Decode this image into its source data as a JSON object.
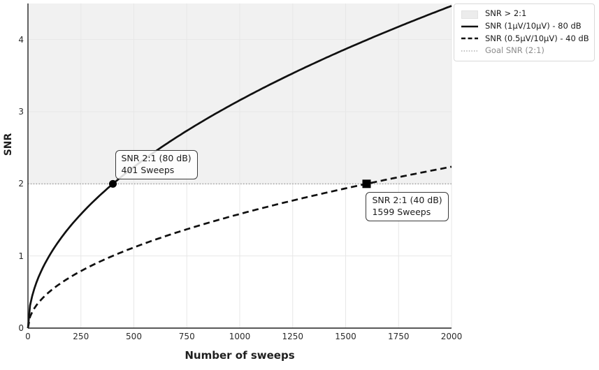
{
  "chart_data": {
    "type": "line",
    "title": "",
    "xlabel": "Number of sweeps",
    "ylabel": "SNR",
    "xlim": [
      0,
      2000
    ],
    "ylim": [
      0,
      4.5
    ],
    "x_ticks": [
      0,
      250,
      500,
      750,
      1000,
      1250,
      1500,
      1750,
      2000
    ],
    "y_ticks": [
      0,
      1,
      2,
      3,
      4
    ],
    "grid": true,
    "grid_color": "#e7e7e7",
    "legend_position": "top-right-outside",
    "shaded_region": {
      "label": "SNR > 2:1",
      "y_from": 2,
      "y_to": 4.5,
      "color": "#f1f1f1"
    },
    "goal_line": {
      "label": "Goal SNR (2:1)",
      "y": 2,
      "style": "dotted",
      "color": "#999999"
    },
    "x": [
      0,
      100,
      200,
      300,
      400,
      500,
      600,
      700,
      800,
      900,
      1000,
      1100,
      1200,
      1300,
      1400,
      1500,
      1600,
      1700,
      1800,
      1900,
      2000
    ],
    "series": [
      {
        "name": "SNR (1µV/10µV) - 80 dB",
        "line_style": "solid",
        "color": "#111111",
        "model": "snr = 2 * sqrt(n / 401)",
        "k": 0.09988,
        "sweeps_for_goal": 401,
        "y": [
          0,
          1.0,
          1.41,
          1.73,
          2.0,
          2.23,
          2.45,
          2.64,
          2.83,
          3.0,
          3.16,
          3.31,
          3.46,
          3.6,
          3.74,
          3.87,
          4.0,
          4.12,
          4.24,
          4.36,
          4.47
        ]
      },
      {
        "name": "SNR (0.5µV/10µV) - 40 dB",
        "line_style": "dashed",
        "color": "#111111",
        "model": "snr = 2 * sqrt(n / 1599)",
        "k": 0.05002,
        "sweeps_for_goal": 1599,
        "y": [
          0,
          0.5,
          0.71,
          0.87,
          1.0,
          1.12,
          1.22,
          1.32,
          1.41,
          1.5,
          1.58,
          1.66,
          1.73,
          1.8,
          1.87,
          1.94,
          2.0,
          2.06,
          2.12,
          2.18,
          2.24
        ]
      }
    ],
    "legend": {
      "items": [
        {
          "label": "SNR > 2:1",
          "swatch": "patch"
        },
        {
          "label": "SNR (1µV/10µV) - 80 dB",
          "swatch": "solid-line"
        },
        {
          "label": "SNR (0.5µV/10µV) - 40 dB",
          "swatch": "dashed-line"
        },
        {
          "label": "Goal SNR (2:1)",
          "swatch": "dotted-line",
          "text_color": "#8a8a8a"
        }
      ]
    },
    "annotations": [
      {
        "line1": "SNR 2:1 (80 dB)",
        "line2": "401 Sweeps",
        "x": 401,
        "y": 2,
        "marker": "circle"
      },
      {
        "line1": "SNR 2:1 (40 dB)",
        "line2": "1599 Sweeps",
        "x": 1599,
        "y": 2,
        "marker": "square"
      }
    ]
  }
}
